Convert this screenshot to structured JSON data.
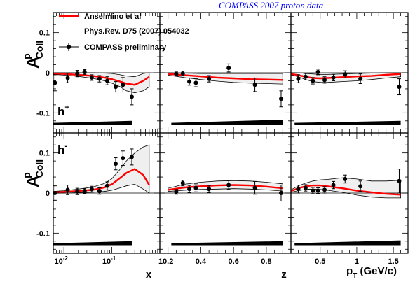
{
  "header": "COMPASS 2007  proton data",
  "ylabel": {
    "main": "A",
    "sup": "p",
    "sub": "Coll"
  },
  "legend": {
    "theory_label": "Anselmino et al",
    "reference_label": "Phys.Rev. D75 (2007) 054032",
    "data_label": "COMPASS preliminary"
  },
  "row_labels": {
    "top": {
      "base": "h",
      "sup": "+"
    },
    "bottom": {
      "base": "h",
      "sup": "-"
    }
  },
  "xlabels": {
    "x": "x",
    "z": "z",
    "pt": {
      "base": "p",
      "sub": "T",
      "rest": " (GeV/c)"
    }
  },
  "ytick_labels": [
    "0.1",
    "0",
    "-0.1"
  ],
  "xtick_labels": {
    "x": [
      "10",
      "-2",
      "10",
      "-1",
      "1"
    ],
    "z": [
      "0.2",
      "0.4",
      "0.6",
      "0.8"
    ],
    "pt": [
      "0.5",
      "1",
      "1.5"
    ]
  },
  "colors": {
    "theory_curve": "#ff0000",
    "data": "#000000",
    "band_fill": "#efefef",
    "header": "#0000ff"
  },
  "chart_data": {
    "type": "scatter",
    "title": "COMPASS 2007  proton data",
    "ylabel": "A_Coll^p",
    "ylim": [
      -0.15,
      0.15
    ],
    "panels_x_axis": [
      {
        "name": "x",
        "scale": "log",
        "xlim": [
          0.006,
          1.0
        ]
      },
      {
        "name": "z",
        "scale": "linear",
        "xlim": [
          0.15,
          0.95
        ]
      },
      {
        "name": "p_T (GeV/c)",
        "scale": "linear",
        "xlim": [
          0.1,
          1.7
        ]
      }
    ],
    "panels": [
      {
        "row": "h+",
        "var": "x",
        "data": {
          "x": [
            0.0065,
            0.012,
            0.019,
            0.027,
            0.038,
            0.055,
            0.08,
            0.12,
            0.17,
            0.26
          ],
          "y": [
            -0.025,
            -0.013,
            -0.002,
            0.002,
            -0.012,
            -0.015,
            -0.02,
            -0.035,
            -0.03,
            -0.06
          ],
          "err": [
            0.02,
            0.012,
            0.008,
            0.006,
            0.007,
            0.008,
            0.01,
            0.013,
            0.018,
            0.02
          ]
        },
        "curve": {
          "x": [
            0.006,
            0.01,
            0.02,
            0.04,
            0.07,
            0.1,
            0.15,
            0.2,
            0.3,
            0.45,
            0.6
          ],
          "y": [
            -0.002,
            -0.003,
            -0.005,
            -0.008,
            -0.012,
            -0.016,
            -0.022,
            -0.027,
            -0.03,
            -0.02,
            -0.01
          ]
        },
        "band_upper": {
          "x": [
            0.006,
            0.01,
            0.02,
            0.04,
            0.07,
            0.1,
            0.15,
            0.2,
            0.3,
            0.45,
            0.6
          ],
          "y": [
            0,
            0,
            0,
            0,
            -0.001,
            -0.002,
            -0.005,
            -0.008,
            -0.01,
            -0.002,
            0
          ]
        },
        "band_lower": {
          "x": [
            0.006,
            0.01,
            0.02,
            0.04,
            0.07,
            0.1,
            0.15,
            0.2,
            0.3,
            0.45,
            0.6
          ],
          "y": [
            -0.004,
            -0.006,
            -0.009,
            -0.014,
            -0.02,
            -0.026,
            -0.035,
            -0.045,
            -0.05,
            -0.045,
            -0.035
          ]
        },
        "syst": {
          "x": [
            0.006,
            0.26
          ],
          "y": [
            0.005,
            0.01
          ]
        }
      },
      {
        "row": "h+",
        "var": "z",
        "data": {
          "x": [
            0.25,
            0.29,
            0.33,
            0.37,
            0.45,
            0.57,
            0.73,
            0.89
          ],
          "y": [
            -0.003,
            -0.002,
            -0.022,
            -0.025,
            -0.015,
            0.012,
            -0.03,
            -0.065
          ],
          "err": [
            0.005,
            0.006,
            0.009,
            0.01,
            0.008,
            0.01,
            0.017,
            0.02
          ]
        },
        "curve": {
          "x": [
            0.2,
            0.3,
            0.4,
            0.5,
            0.6,
            0.7,
            0.8,
            0.9
          ],
          "y": [
            -0.003,
            -0.006,
            -0.009,
            -0.012,
            -0.014,
            -0.016,
            -0.017,
            -0.018
          ]
        },
        "band_upper": {
          "x": [
            0.2,
            0.3,
            0.4,
            0.5,
            0.6,
            0.7,
            0.8,
            0.9
          ],
          "y": [
            0,
            -0.001,
            -0.002,
            -0.002,
            -0.002,
            -0.002,
            -0.002,
            -0.002
          ]
        },
        "band_lower": {
          "x": [
            0.2,
            0.3,
            0.4,
            0.5,
            0.6,
            0.7,
            0.8,
            0.9
          ],
          "y": [
            -0.006,
            -0.012,
            -0.017,
            -0.021,
            -0.024,
            -0.026,
            -0.027,
            -0.028
          ]
        },
        "syst": {
          "x": [
            0.22,
            0.9
          ],
          "y": [
            0.005,
            0.013
          ]
        }
      },
      {
        "row": "h+",
        "var": "pt",
        "data": {
          "x": [
            0.2,
            0.3,
            0.4,
            0.47,
            0.56,
            0.68,
            0.84,
            1.05,
            1.58
          ],
          "y": [
            -0.015,
            -0.01,
            -0.02,
            0.002,
            -0.018,
            -0.012,
            -0.004,
            -0.015,
            -0.035
          ],
          "err": [
            0.01,
            0.008,
            0.008,
            0.007,
            0.008,
            0.008,
            0.009,
            0.012,
            0.02
          ]
        },
        "curve": {
          "x": [
            0.1,
            0.2,
            0.3,
            0.4,
            0.5,
            0.6,
            0.8,
            1.0,
            1.2,
            1.4,
            1.6
          ],
          "y": [
            -0.003,
            -0.006,
            -0.01,
            -0.013,
            -0.014,
            -0.013,
            -0.011,
            -0.009,
            -0.008,
            -0.005,
            -0.003
          ]
        },
        "band_upper": {
          "x": [
            0.1,
            0.2,
            0.3,
            0.4,
            0.5,
            0.6,
            0.8,
            1.0,
            1.2,
            1.4,
            1.6
          ],
          "y": [
            0,
            0,
            -0.002,
            -0.003,
            -0.004,
            -0.004,
            -0.003,
            -0.002,
            -0.001,
            0,
            0
          ]
        },
        "band_lower": {
          "x": [
            0.1,
            0.2,
            0.3,
            0.4,
            0.5,
            0.6,
            0.8,
            1.0,
            1.2,
            1.4,
            1.6
          ],
          "y": [
            -0.005,
            -0.01,
            -0.017,
            -0.022,
            -0.024,
            -0.024,
            -0.022,
            -0.02,
            -0.017,
            -0.013,
            -0.01
          ]
        },
        "syst": {
          "x": [
            0.15,
            1.6
          ],
          "y": [
            0.005,
            0.01
          ]
        }
      },
      {
        "row": "h-",
        "var": "x",
        "data": {
          "x": [
            0.0065,
            0.012,
            0.019,
            0.027,
            0.038,
            0.055,
            0.08,
            0.12,
            0.17,
            0.26
          ],
          "y": [
            0.0,
            0.008,
            0.004,
            0.005,
            0.01,
            0.005,
            0.018,
            0.073,
            0.087,
            0.09
          ],
          "err": [
            0.018,
            0.012,
            0.008,
            0.006,
            0.007,
            0.008,
            0.01,
            0.015,
            0.018,
            0.02
          ]
        },
        "curve": {
          "x": [
            0.006,
            0.01,
            0.02,
            0.04,
            0.07,
            0.1,
            0.15,
            0.2,
            0.3,
            0.45,
            0.6
          ],
          "y": [
            0.002,
            0.003,
            0.005,
            0.008,
            0.014,
            0.022,
            0.038,
            0.05,
            0.06,
            0.045,
            0.02
          ]
        },
        "band_upper": {
          "x": [
            0.006,
            0.01,
            0.02,
            0.04,
            0.07,
            0.1,
            0.15,
            0.2,
            0.3,
            0.45,
            0.6
          ],
          "y": [
            0.004,
            0.006,
            0.01,
            0.015,
            0.024,
            0.036,
            0.06,
            0.08,
            0.1,
            0.115,
            0.12
          ]
        },
        "band_lower": {
          "x": [
            0.006,
            0.01,
            0.02,
            0.04,
            0.07,
            0.1,
            0.15,
            0.2,
            0.3,
            0.45,
            0.6
          ],
          "y": [
            0,
            0,
            0.001,
            0.002,
            0.004,
            0.007,
            0.013,
            0.018,
            0.022,
            0.01,
            0
          ]
        },
        "syst": {
          "x": [
            0.006,
            0.26
          ],
          "y": [
            0.005,
            0.01
          ]
        }
      },
      {
        "row": "h-",
        "var": "z",
        "data": {
          "x": [
            0.25,
            0.29,
            0.33,
            0.37,
            0.45,
            0.57,
            0.73,
            0.89
          ],
          "y": [
            0.003,
            0.025,
            0.01,
            0.013,
            0.01,
            0.02,
            0.013,
            0.0
          ],
          "err": [
            0.006,
            0.007,
            0.009,
            0.01,
            0.009,
            0.011,
            0.016,
            0.02
          ]
        },
        "curve": {
          "x": [
            0.2,
            0.3,
            0.4,
            0.5,
            0.6,
            0.7,
            0.8,
            0.9
          ],
          "y": [
            0.008,
            0.014,
            0.017,
            0.019,
            0.02,
            0.019,
            0.016,
            0.012
          ]
        },
        "band_upper": {
          "x": [
            0.2,
            0.3,
            0.4,
            0.5,
            0.6,
            0.7,
            0.8,
            0.9
          ],
          "y": [
            0.012,
            0.022,
            0.027,
            0.03,
            0.031,
            0.03,
            0.027,
            0.023
          ]
        },
        "band_lower": {
          "x": [
            0.2,
            0.3,
            0.4,
            0.5,
            0.6,
            0.7,
            0.8,
            0.9
          ],
          "y": [
            0.004,
            0.007,
            0.009,
            0.01,
            0.011,
            0.01,
            0.008,
            0.005
          ]
        },
        "syst": {
          "x": [
            0.22,
            0.9
          ],
          "y": [
            0.005,
            0.01
          ]
        }
      },
      {
        "row": "h-",
        "var": "pt",
        "data": {
          "x": [
            0.2,
            0.3,
            0.4,
            0.47,
            0.56,
            0.68,
            0.84,
            1.05,
            1.58
          ],
          "y": [
            0.01,
            0.013,
            0.006,
            0.006,
            0.008,
            0.02,
            0.035,
            0.017,
            0.03
          ],
          "err": [
            0.01,
            0.008,
            0.008,
            0.007,
            0.008,
            0.009,
            0.01,
            0.013,
            0.03
          ]
        },
        "curve": {
          "x": [
            0.1,
            0.2,
            0.3,
            0.4,
            0.5,
            0.6,
            0.8,
            1.0,
            1.2,
            1.4,
            1.6
          ],
          "y": [
            0.005,
            0.012,
            0.017,
            0.019,
            0.019,
            0.017,
            0.012,
            0.006,
            0.002,
            -0.002,
            -0.004
          ]
        },
        "band_upper": {
          "x": [
            0.1,
            0.2,
            0.3,
            0.4,
            0.5,
            0.6,
            0.8,
            1.0,
            1.2,
            1.4,
            1.6
          ],
          "y": [
            0.008,
            0.018,
            0.025,
            0.03,
            0.033,
            0.034,
            0.038,
            0.035,
            0.03,
            0.03,
            0.032
          ]
        },
        "band_lower": {
          "x": [
            0.1,
            0.2,
            0.3,
            0.4,
            0.5,
            0.6,
            0.8,
            1.0,
            1.2,
            1.4,
            1.6
          ],
          "y": [
            0.002,
            0.006,
            0.009,
            0.01,
            0.009,
            0.007,
            0.002,
            -0.005,
            -0.01,
            -0.012,
            -0.012
          ]
        },
        "syst": {
          "x": [
            0.15,
            1.6
          ],
          "y": [
            0.005,
            0.012
          ]
        }
      }
    ]
  }
}
